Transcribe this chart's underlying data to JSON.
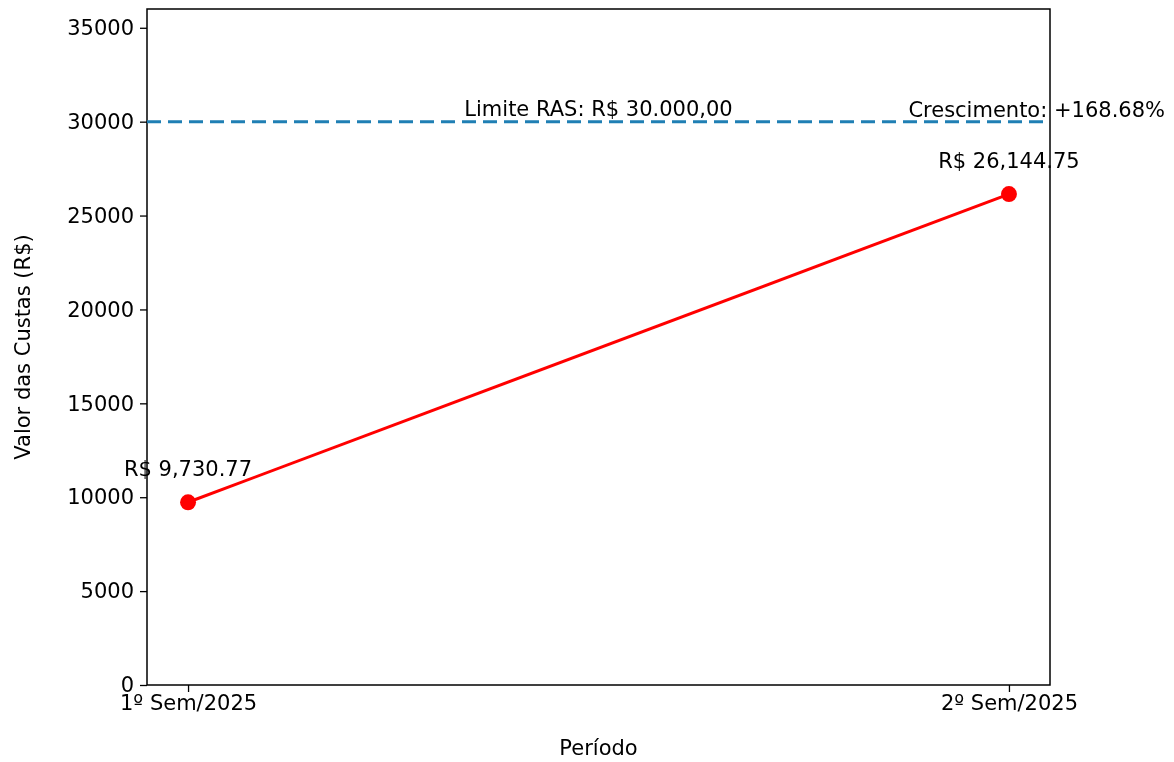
{
  "chart_data": {
    "type": "line",
    "xlabel": "Período",
    "ylabel": "Valor das Custas (R$)",
    "categories": [
      "1º Sem/2025",
      "2º Sem/2025"
    ],
    "series": [
      {
        "color": "#ff0000",
        "values": [
          9730.77,
          26144.75
        ],
        "value_labels": [
          "R$ 9,730.77",
          "R$ 26,144.75"
        ]
      }
    ],
    "ylim": [
      0,
      36000
    ],
    "yticks": [
      0,
      5000,
      10000,
      15000,
      20000,
      25000,
      30000,
      35000
    ],
    "ref_lines": [
      {
        "axis": "y",
        "value": 30000,
        "label": "Limite RAS: R$ 30.000,00",
        "color": "#1f7fb4",
        "line_style": "dashed"
      }
    ],
    "annotations": [
      "Crescimento: +168.68%"
    ],
    "marker": "circle",
    "line_style": "solid",
    "grid": false
  }
}
